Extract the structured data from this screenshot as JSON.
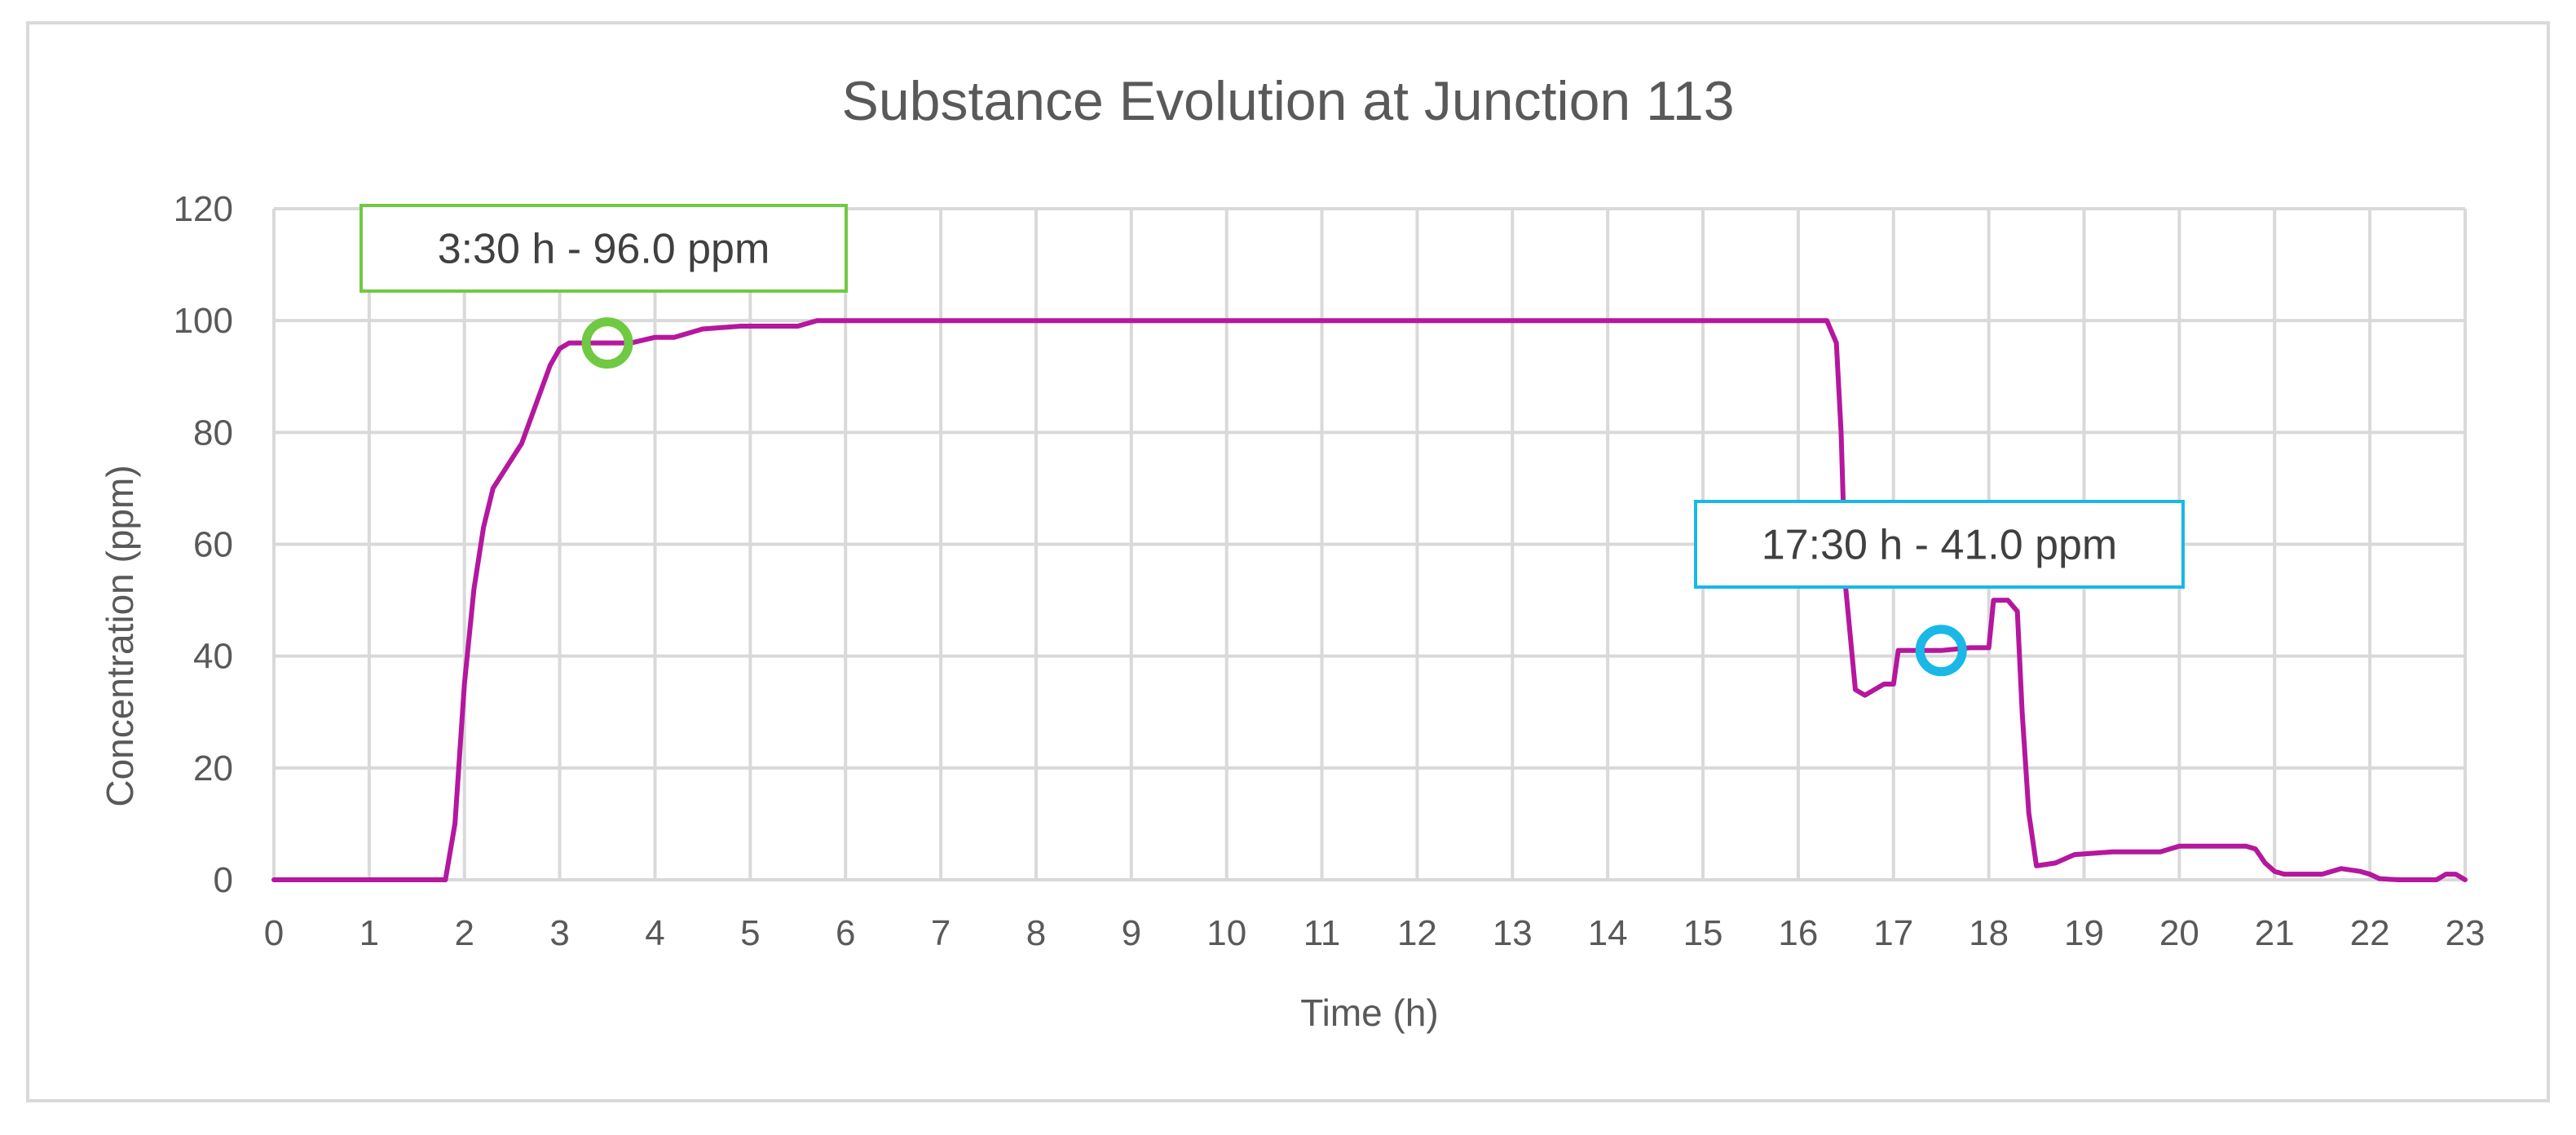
{
  "chart_data": {
    "type": "line",
    "title": "Substance Evolution at Junction 113",
    "xlabel": "Time (h)",
    "ylabel": "Concentration (ppm)",
    "xlim": [
      0,
      23
    ],
    "ylim": [
      0,
      120
    ],
    "x_ticks": [
      "0",
      "1",
      "2",
      "3",
      "4",
      "5",
      "6",
      "7",
      "8",
      "9",
      "10",
      "11",
      "12",
      "13",
      "14",
      "15",
      "16",
      "17",
      "18",
      "19",
      "20",
      "21",
      "22",
      "23"
    ],
    "y_ticks": [
      "0",
      "20",
      "40",
      "60",
      "80",
      "100",
      "120"
    ],
    "grid": true,
    "legend": "none",
    "series": [
      {
        "color": "#b5179e",
        "x": [
          0,
          1.8,
          1.9,
          2.0,
          2.1,
          2.2,
          2.3,
          2.45,
          2.6,
          2.75,
          2.9,
          3.0,
          3.1,
          3.3,
          3.5,
          3.75,
          4.0,
          4.2,
          4.5,
          4.9,
          5.5,
          5.7,
          7,
          10,
          16.3,
          16.4,
          16.45,
          16.5,
          16.6,
          16.7,
          16.8,
          16.9,
          17.0,
          17.05,
          17.2,
          17.5,
          17.8,
          18.0,
          18.05,
          18.2,
          18.3,
          18.35,
          18.42,
          18.5,
          18.7,
          18.9,
          19.3,
          19.8,
          20.0,
          20.7,
          20.8,
          20.9,
          21.0,
          21.1,
          21.5,
          21.7,
          21.9,
          22.0,
          22.1,
          22.3,
          22.7,
          22.8,
          22.9,
          23.0
        ],
        "y": [
          0,
          0,
          10,
          35,
          52,
          63,
          70,
          74,
          78,
          85,
          92,
          95,
          96,
          96,
          96,
          96,
          97,
          97,
          98.5,
          99,
          99,
          100,
          100,
          100,
          100,
          96,
          80,
          52,
          34,
          33,
          34,
          35,
          35,
          41,
          41,
          41,
          41.5,
          41.5,
          50,
          50,
          48,
          30,
          12,
          2.5,
          3,
          4.5,
          5,
          5,
          6,
          6,
          5.5,
          3,
          1.5,
          1,
          1,
          2,
          1.5,
          1,
          0.2,
          0,
          0,
          1,
          1,
          0
        ]
      }
    ],
    "annotations": [
      {
        "label": "3:30 h  -  96.0 ppm",
        "x": 3.5,
        "y": 96,
        "color": "#70c942"
      },
      {
        "label": "17:30 h  -  41.0 ppm",
        "x": 17.5,
        "y": 41,
        "color": "#19b8e6"
      }
    ]
  }
}
